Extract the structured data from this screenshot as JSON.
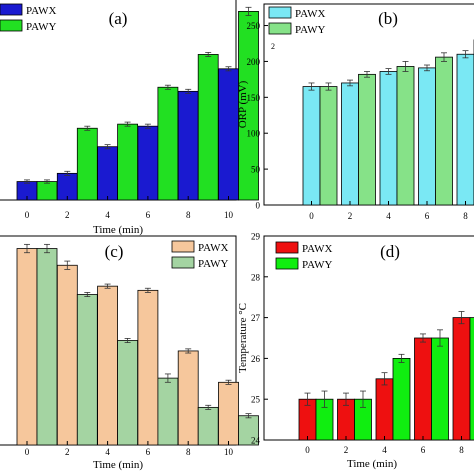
{
  "chart_data": [
    {
      "panel_label": "(a)",
      "type": "bar",
      "xlabel": "Time (min)",
      "ylabel": "",
      "categories": [
        "0",
        "2",
        "4",
        "6",
        "8",
        "10"
      ],
      "ylim": [
        0,
        100
      ],
      "yticks": [],
      "series": [
        {
          "name": "PAWX",
          "color": "#1a1ad0",
          "values": [
            9,
            13,
            26,
            36,
            53,
            64
          ],
          "errors": [
            0.8,
            1,
            1,
            1,
            1,
            1
          ]
        },
        {
          "name": "PAWY",
          "color": "#22e022",
          "values": [
            9,
            35,
            37,
            55,
            71,
            92
          ],
          "errors": [
            0.8,
            1,
            1,
            1,
            1,
            2
          ]
        }
      ],
      "legend_position": "top-left"
    },
    {
      "panel_label": "(b)",
      "type": "bar",
      "xlabel": "",
      "ylabel": "ORP (mV)",
      "categories": [
        "0",
        "2",
        "4",
        "6",
        "8"
      ],
      "ylim": [
        0,
        280
      ],
      "yticks": [
        0,
        50,
        100,
        150,
        200,
        250
      ],
      "annotation": "2",
      "series": [
        {
          "name": "PAWX",
          "color": "#7ae8f4",
          "values": [
            165,
            170,
            186,
            191,
            210
          ],
          "errors": [
            5,
            4,
            4,
            4,
            5
          ]
        },
        {
          "name": "PAWY",
          "color": "#86e288",
          "values": [
            165,
            182,
            193,
            206,
            230
          ],
          "errors": [
            5,
            4,
            7,
            6,
            5
          ]
        }
      ],
      "legend_position": "top-left"
    },
    {
      "panel_label": "(c)",
      "type": "bar",
      "xlabel": "Time (min)",
      "ylabel": "",
      "categories": [
        "0",
        "2",
        "4",
        "6",
        "8",
        "10"
      ],
      "ylim": [
        0,
        100
      ],
      "yticks": [],
      "series": [
        {
          "name": "PAWX",
          "color": "#f6c79c",
          "values": [
            94,
            86,
            76,
            74,
            45,
            30
          ],
          "errors": [
            2,
            2,
            1,
            1,
            1,
            1
          ]
        },
        {
          "name": "PAWY",
          "color": "#a4d4a2",
          "values": [
            94,
            72,
            50,
            32,
            18,
            14
          ],
          "errors": [
            2,
            1,
            1,
            2,
            1,
            1
          ]
        }
      ],
      "legend_position": "top-right"
    },
    {
      "panel_label": "(d)",
      "type": "bar",
      "xlabel": "Time (min)",
      "ylabel": "Temperature °C",
      "categories": [
        "0",
        "2",
        "4",
        "6",
        "8"
      ],
      "ylim": [
        24,
        29
      ],
      "yticks": [
        24,
        25,
        26,
        27,
        28,
        29
      ],
      "series": [
        {
          "name": "PAWX",
          "color": "#ee1010",
          "values": [
            25.0,
            25.0,
            25.5,
            26.5,
            27.0
          ],
          "errors": [
            0.15,
            0.15,
            0.15,
            0.1,
            0.15
          ]
        },
        {
          "name": "PAWY",
          "color": "#10ee10",
          "values": [
            25.0,
            25.0,
            26.0,
            26.5,
            27.0
          ],
          "errors": [
            0.2,
            0.2,
            0.1,
            0.2,
            0.15
          ]
        }
      ],
      "legend_position": "top-left"
    }
  ]
}
